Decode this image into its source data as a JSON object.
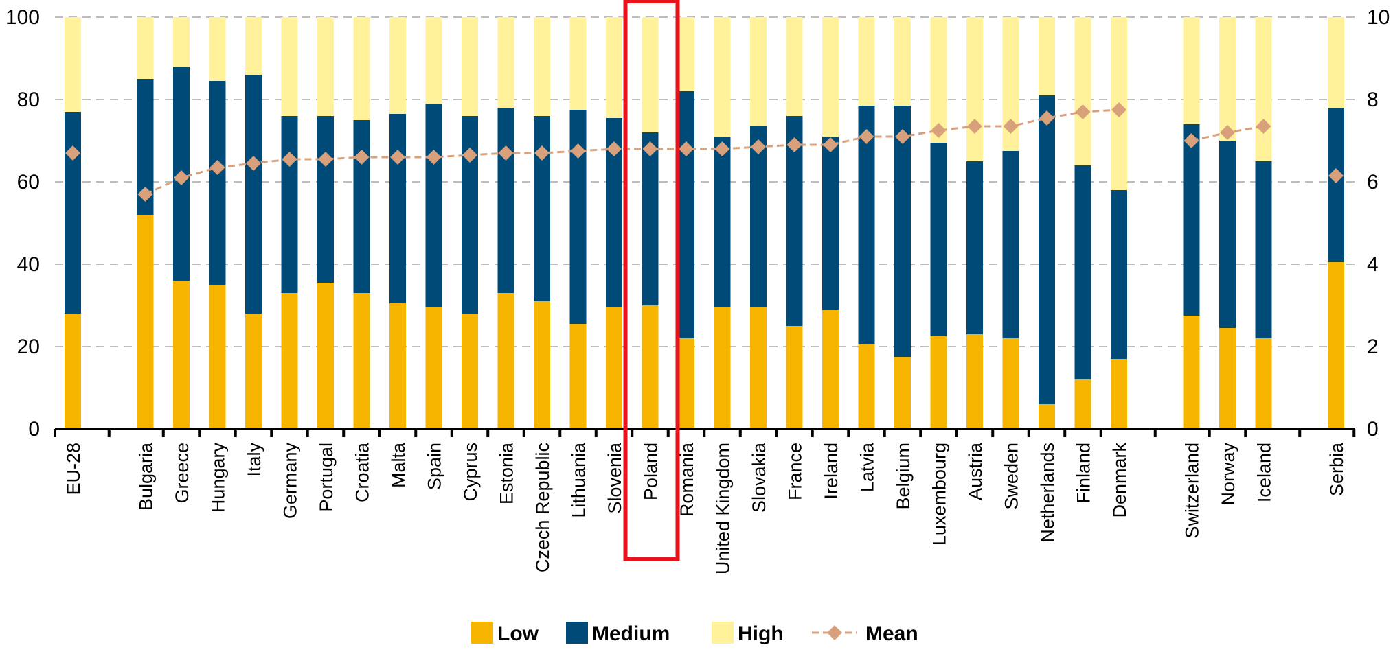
{
  "chart_data": {
    "type": "bar",
    "stacked": true,
    "percent_stacked": true,
    "categories": [
      "EU-28",
      "Bulgaria",
      "Greece",
      "Hungary",
      "Italy",
      "Germany",
      "Portugal",
      "Croatia",
      "Malta",
      "Spain",
      "Cyprus",
      "Estonia",
      "Czech Republic",
      "Lithuania",
      "Slovenia",
      "Poland",
      "Romania",
      "United Kingdom",
      "Slovakia",
      "France",
      "Ireland",
      "Latvia",
      "Belgium",
      "Luxembourg",
      "Austria",
      "Sweden",
      "Netherlands",
      "Finland",
      "Denmark",
      "Switzerland",
      "Norway",
      "Iceland",
      "Serbia"
    ],
    "series": [
      {
        "name": "Low",
        "color": "#F7B500",
        "values": [
          28,
          52,
          36,
          35,
          28,
          33,
          35.5,
          33,
          30.5,
          29.5,
          28,
          33,
          31,
          25.5,
          29.5,
          30,
          22,
          29.5,
          29.5,
          25,
          29,
          20.5,
          17.5,
          22.5,
          23,
          22,
          6,
          12,
          17,
          27.5,
          24.5,
          22,
          40.5
        ]
      },
      {
        "name": "Medium",
        "color": "#004A78",
        "values": [
          49,
          33,
          52,
          49.5,
          58,
          43,
          40.5,
          42,
          46,
          49.5,
          48,
          45,
          45,
          52,
          46,
          42,
          60,
          41.5,
          44,
          51,
          42,
          58,
          61,
          47,
          42,
          45.5,
          75,
          52,
          41,
          46.5,
          45.5,
          43,
          37.5
        ]
      },
      {
        "name": "High",
        "color": "#FFF29A",
        "values": [
          23,
          15,
          12,
          15.5,
          14,
          24,
          24,
          25,
          23.5,
          21,
          24,
          22,
          24,
          22.5,
          24.5,
          28,
          18,
          29,
          26.5,
          24,
          29,
          21.5,
          21.5,
          30.5,
          35,
          32.5,
          19,
          36,
          42,
          26,
          30,
          35,
          22
        ]
      },
      {
        "name": "Mean",
        "type": "line",
        "axis": "right",
        "color": "#D9A07C",
        "values": [
          6.7,
          5.7,
          6.1,
          6.35,
          6.45,
          6.55,
          6.55,
          6.6,
          6.6,
          6.6,
          6.65,
          6.7,
          6.7,
          6.75,
          6.8,
          6.8,
          6.8,
          6.8,
          6.85,
          6.9,
          6.9,
          7.1,
          7.1,
          7.25,
          7.35,
          7.35,
          7.55,
          7.7,
          7.75,
          7.0,
          7.2,
          7.35,
          6.15
        ]
      }
    ],
    "ylim": [
      0,
      100
    ],
    "yticks": [
      0,
      20,
      40,
      60,
      80,
      100
    ],
    "y2lim": [
      0,
      10
    ],
    "y2ticks_visible": [
      "0",
      "2",
      "4",
      "6",
      "8",
      "10"
    ],
    "grid": true,
    "legend_position": "bottom",
    "highlighted_category": "Poland",
    "highlight_color": "#E8141B",
    "xlabel": "",
    "ylabel": "",
    "title": ""
  }
}
